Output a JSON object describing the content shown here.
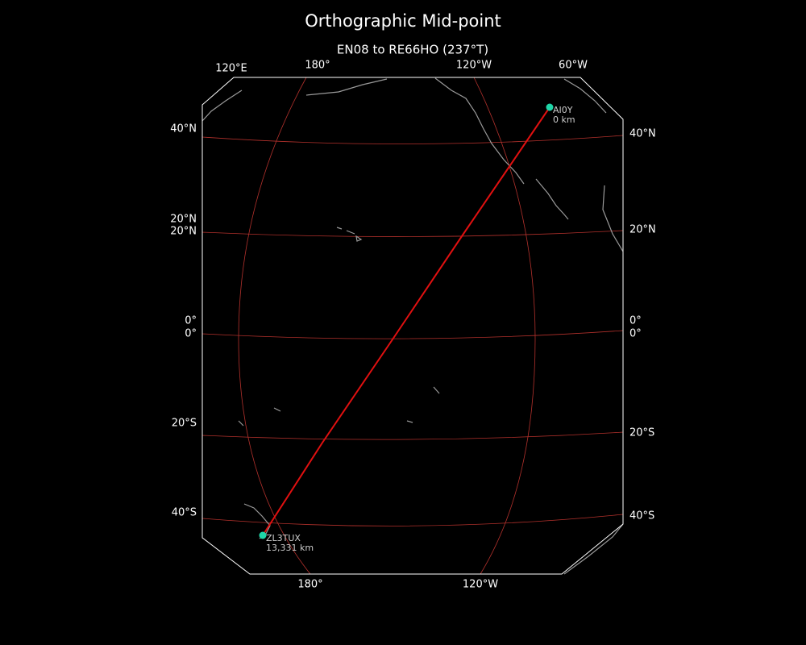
{
  "title": "Orthographic Mid-point",
  "subtitle": "EN08 to RE66HO (237°T)",
  "top_lon_labels": [
    "120°E",
    "180°",
    "120°W",
    "60°W"
  ],
  "bottom_lon_labels": [
    "180°",
    "120°W"
  ],
  "left_lat_labels": [
    "40°N",
    "20°N",
    "20°N",
    "0°",
    "0°",
    "20°S",
    "40°S"
  ],
  "right_lat_labels": [
    "40°N",
    "20°N",
    "0°",
    "0°",
    "20°S",
    "40°S"
  ],
  "stations": [
    {
      "name": "AI0Y",
      "distance": "0 km"
    },
    {
      "name": "ZL3TUX",
      "distance": "13,331 km"
    }
  ]
}
